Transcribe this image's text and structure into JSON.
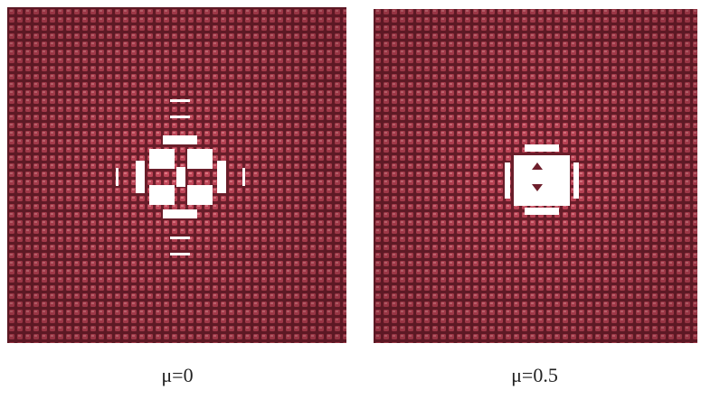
{
  "panels": [
    {
      "caption": "μ=0"
    },
    {
      "caption": "μ=0.5"
    }
  ]
}
